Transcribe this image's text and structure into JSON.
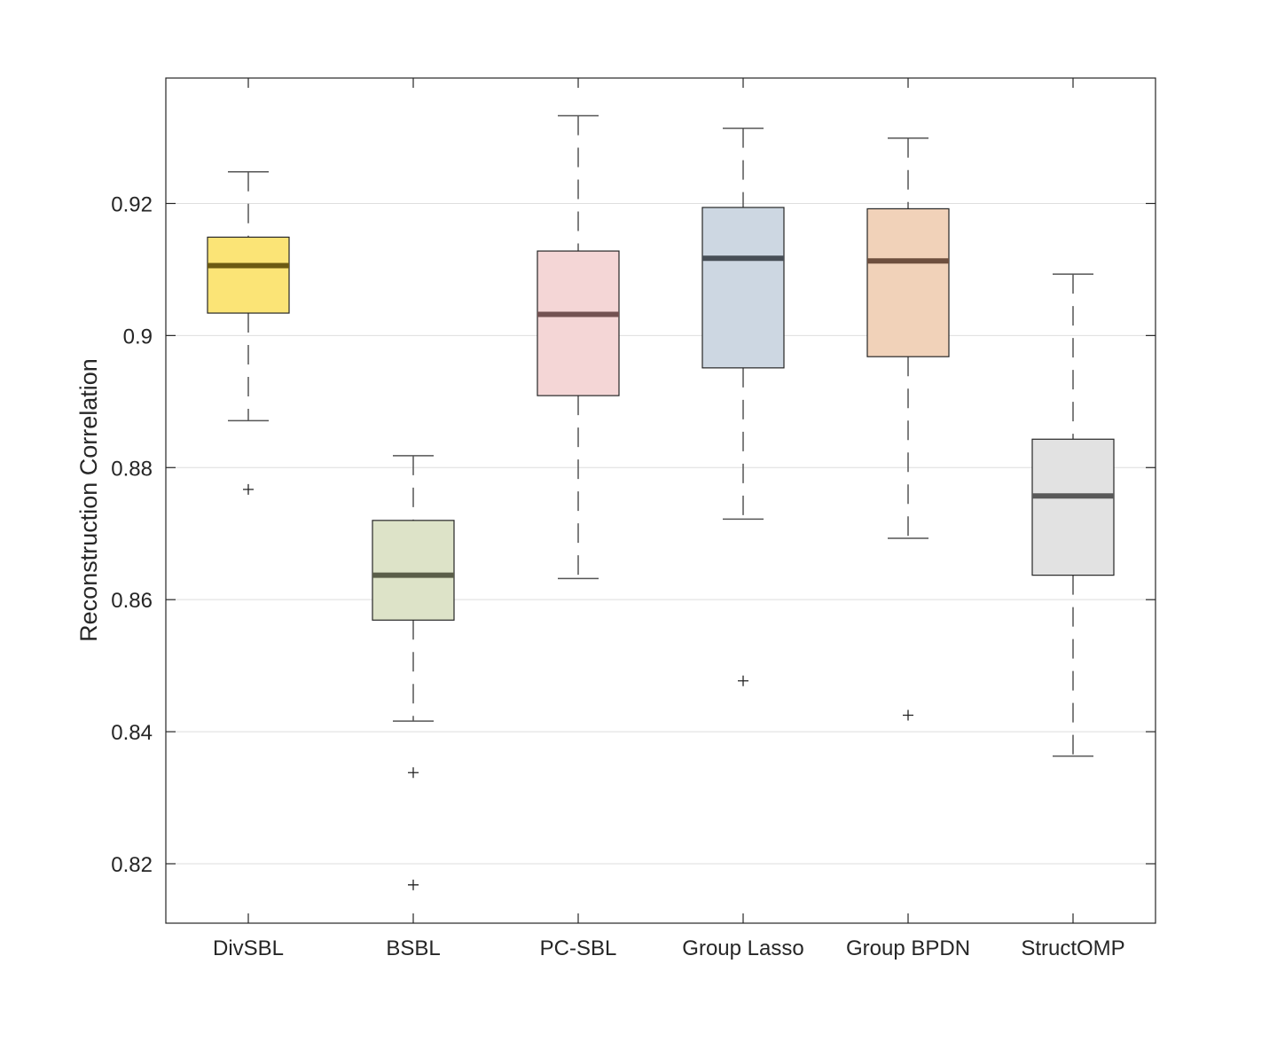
{
  "chart_data": {
    "type": "boxplot",
    "title": "",
    "xlabel": "",
    "ylabel": "Reconstruction Correlation",
    "ylim": [
      0.811,
      0.939
    ],
    "yticks": [
      0.82,
      0.84,
      0.86,
      0.88,
      0.9,
      0.92
    ],
    "ytick_labels": [
      "0.82",
      "0.84",
      "0.86",
      "0.88",
      "0.9",
      "0.92"
    ],
    "grid": "horizontal",
    "categories": [
      "DivSBL",
      "BSBL",
      "PC-SBL",
      "Group Lasso",
      "Group BPDN",
      "StructOMP"
    ],
    "boxes": [
      {
        "name": "DivSBL",
        "whisker_low": 0.8871,
        "q1": 0.9034,
        "median": 0.9106,
        "q3": 0.9149,
        "whisker_high": 0.9248,
        "outliers": [
          0.8767
        ],
        "fill": "#fbe476",
        "median_color": "#6b5a12"
      },
      {
        "name": "BSBL",
        "whisker_low": 0.8416,
        "q1": 0.8569,
        "median": 0.8637,
        "q3": 0.872,
        "whisker_high": 0.8818,
        "outliers": [
          0.8338,
          0.8168
        ],
        "fill": "#dde3c8",
        "median_color": "#5a5e49"
      },
      {
        "name": "PC-SBL",
        "whisker_low": 0.8632,
        "q1": 0.8909,
        "median": 0.9032,
        "q3": 0.9128,
        "whisker_high": 0.9333,
        "outliers": [],
        "fill": "#f4d6d6",
        "median_color": "#735252"
      },
      {
        "name": "Group Lasso",
        "whisker_low": 0.8722,
        "q1": 0.8951,
        "median": 0.9117,
        "q3": 0.9194,
        "whisker_high": 0.9314,
        "outliers": [
          0.8477
        ],
        "fill": "#cdd7e2",
        "median_color": "#474e56"
      },
      {
        "name": "Group BPDN",
        "whisker_low": 0.8693,
        "q1": 0.8968,
        "median": 0.9113,
        "q3": 0.9192,
        "whisker_high": 0.9299,
        "outliers": [
          0.8425
        ],
        "fill": "#f1d2b9",
        "median_color": "#6e4f3e"
      },
      {
        "name": "StructOMP",
        "whisker_low": 0.8363,
        "q1": 0.8637,
        "median": 0.8757,
        "q3": 0.8843,
        "whisker_high": 0.9093,
        "outliers": [],
        "fill": "#e2e2e2",
        "median_color": "#595959"
      }
    ],
    "colors": {
      "axis": "#262626",
      "grid": "#dedede",
      "whisker": "#555555",
      "box_edge": "#262626"
    }
  }
}
